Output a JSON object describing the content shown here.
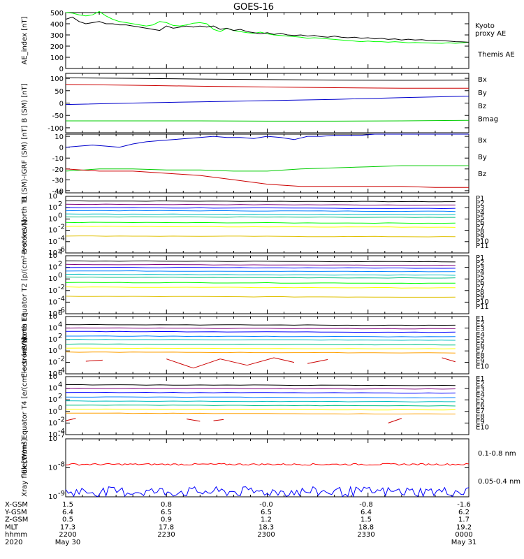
{
  "title": "GOES-16",
  "chart_data": [
    {
      "type": "line",
      "id": "ae",
      "ylabel": "AE_index [nT]",
      "ylim": [
        0,
        500
      ],
      "yticks": [
        "0",
        "100",
        "200",
        "300",
        "400",
        "500"
      ],
      "legend": [
        {
          "label": "Kyoto",
          "color": "#00ff00"
        },
        {
          "label": "proxy AE",
          "color": "#00ff00"
        },
        {
          "label": "Themis AE",
          "color": "#000000"
        }
      ],
      "series": [
        {
          "name": "Kyoto proxy AE",
          "color": "#00ff00",
          "x": [
            0,
            10,
            20,
            30,
            40,
            50,
            60,
            70,
            80,
            90,
            100,
            110,
            120,
            130,
            140,
            150,
            160,
            170,
            180,
            190,
            200,
            210,
            220,
            230,
            240,
            250,
            260,
            270,
            280,
            290,
            300,
            310,
            320,
            330,
            340,
            350,
            360,
            370,
            380,
            390,
            400,
            410,
            420,
            430,
            440,
            450,
            460,
            470,
            480,
            490,
            500,
            510,
            520,
            530,
            540,
            550,
            560,
            570,
            580,
            590,
            600
          ],
          "y": [
            500,
            495,
            480,
            470,
            480,
            510,
            470,
            440,
            420,
            410,
            400,
            390,
            380,
            390,
            420,
            410,
            385,
            380,
            390,
            405,
            410,
            400,
            350,
            330,
            360,
            340,
            330,
            320,
            315,
            325,
            310,
            300,
            295,
            290,
            285,
            280,
            270,
            275,
            270,
            265,
            260,
            255,
            250,
            245,
            240,
            245,
            240,
            240,
            235,
            240,
            235,
            230,
            232,
            230,
            228,
            226,
            225,
            230,
            225,
            230,
            235
          ]
        },
        {
          "name": "Themis AE",
          "color": "#000000",
          "x": [
            0,
            10,
            20,
            30,
            40,
            50,
            60,
            70,
            80,
            90,
            100,
            110,
            120,
            130,
            140,
            150,
            160,
            170,
            180,
            190,
            200,
            210,
            220,
            230,
            240,
            250,
            260,
            270,
            280,
            290,
            300,
            310,
            320,
            330,
            340,
            350,
            360,
            370,
            380,
            390,
            400,
            410,
            420,
            430,
            440,
            450,
            460,
            470,
            480,
            490,
            500,
            510,
            520,
            530,
            540,
            550,
            560,
            570,
            580,
            590,
            600
          ],
          "y": [
            440,
            460,
            420,
            400,
            410,
            420,
            400,
            400,
            390,
            390,
            380,
            370,
            360,
            350,
            340,
            380,
            360,
            370,
            380,
            370,
            380,
            370,
            380,
            350,
            360,
            340,
            350,
            330,
            320,
            310,
            320,
            305,
            315,
            300,
            295,
            300,
            290,
            295,
            285,
            280,
            290,
            280,
            275,
            280,
            270,
            275,
            265,
            270,
            260,
            265,
            255,
            262,
            255,
            258,
            250,
            252,
            248,
            245,
            240,
            238,
            235
          ]
        }
      ]
    },
    {
      "type": "line",
      "id": "bsm",
      "ylabel": "B (SM) [nT]",
      "ylim": [
        -120,
        120
      ],
      "yticks": [
        "-100",
        "-50",
        "0",
        "50",
        "100"
      ],
      "yticks_values": [
        -100,
        -50,
        0,
        50,
        100
      ],
      "legend": [
        {
          "label": "Bx",
          "color": "#0000cc"
        },
        {
          "label": "By",
          "color": "#00cc00"
        },
        {
          "label": "Bz",
          "color": "#cc0000"
        },
        {
          "label": "Bmag",
          "color": "#000000"
        }
      ],
      "series": [
        {
          "name": "Bmag",
          "color": "#000000",
          "x": [
            0,
            100,
            200,
            300,
            400,
            500,
            600
          ],
          "y": [
            102,
            100,
            97,
            95,
            93,
            92,
            93
          ]
        },
        {
          "name": "Bz",
          "color": "#cc0000",
          "x": [
            0,
            100,
            200,
            300,
            400,
            500,
            600
          ],
          "y": [
            75,
            72,
            68,
            65,
            62,
            60,
            60
          ]
        },
        {
          "name": "Bx",
          "color": "#0000cc",
          "x": [
            0,
            100,
            200,
            300,
            400,
            500,
            600
          ],
          "y": [
            -6,
            0,
            5,
            10,
            15,
            22,
            28
          ]
        },
        {
          "name": "By",
          "color": "#00cc00",
          "x": [
            0,
            100,
            200,
            300,
            400,
            500,
            600
          ],
          "y": [
            -72,
            -72,
            -72,
            -73,
            -73,
            -72,
            -70
          ]
        }
      ]
    },
    {
      "type": "line",
      "id": "bsmigrf",
      "ylabel": "B (SM)-IGRF (SM) [nT]",
      "ylim": [
        -42,
        12
      ],
      "yticks": [
        "-40",
        "-30",
        "-20",
        "-10",
        "0",
        "10"
      ],
      "yticks_values": [
        -40,
        -30,
        -20,
        -10,
        0,
        10
      ],
      "legend": [
        {
          "label": "Bx",
          "color": "#0000cc"
        },
        {
          "label": "By",
          "color": "#00cc00"
        },
        {
          "label": "Bz",
          "color": "#cc0000"
        }
      ],
      "series": [
        {
          "name": "Bx",
          "color": "#0000cc",
          "x": [
            0,
            20,
            40,
            60,
            80,
            100,
            120,
            140,
            160,
            180,
            200,
            220,
            240,
            260,
            280,
            300,
            320,
            340,
            360,
            380,
            400,
            420,
            440,
            460,
            480,
            500,
            520,
            540,
            560,
            580,
            600
          ],
          "y": [
            0,
            1,
            2,
            1,
            0,
            3,
            5,
            6,
            7,
            8,
            9,
            10,
            9,
            9,
            8,
            10,
            9,
            7,
            10,
            10,
            11,
            11,
            11,
            12,
            12,
            12,
            12,
            12,
            12,
            12,
            12
          ]
        },
        {
          "name": "By",
          "color": "#00cc00",
          "x": [
            0,
            50,
            100,
            150,
            200,
            250,
            300,
            350,
            400,
            450,
            500,
            550,
            600
          ],
          "y": [
            -22,
            -20,
            -20,
            -21,
            -21,
            -22,
            -22,
            -20,
            -19,
            -18,
            -17,
            -17,
            -17
          ]
        },
        {
          "name": "Bz",
          "color": "#cc0000",
          "x": [
            0,
            50,
            100,
            150,
            200,
            250,
            300,
            350,
            400,
            450,
            500,
            550,
            600
          ],
          "y": [
            -20,
            -22,
            -22,
            -24,
            -26,
            -30,
            -34,
            -36,
            -36,
            -36,
            -36,
            -37,
            -37
          ]
        }
      ]
    },
    {
      "type": "line",
      "id": "p_north",
      "ylabel": "Protons North T1",
      "yscale": "log",
      "ylim_exp": [
        -6,
        4
      ],
      "yticks_exp": [
        4,
        2,
        0,
        -2,
        -4,
        -6
      ],
      "legend": [
        {
          "label": "P1",
          "color": "#000000"
        },
        {
          "label": "P2",
          "color": "#7f007f"
        },
        {
          "label": "P3",
          "color": "#0000ff"
        },
        {
          "label": "P4",
          "color": "#0080ff"
        },
        {
          "label": "P5",
          "color": "#00bfbf"
        },
        {
          "label": "P6",
          "color": "#00c080"
        },
        {
          "label": "P7",
          "color": "#00ff00"
        },
        {
          "label": "P8",
          "color": "#ffff00"
        },
        {
          "label": "P9",
          "color": "#ffc000"
        },
        {
          "label": "P10",
          "color": "#ff0000"
        },
        {
          "label": "P11",
          "color": "#aa0000"
        }
      ],
      "levels": [
        3.2,
        2.6,
        2.0,
        1.5,
        0.9,
        0.4,
        -0.6,
        -1.3,
        -3.0
      ],
      "level_colors": [
        "#000000",
        "#7f007f",
        "#0000ff",
        "#0080ff",
        "#00bfbf",
        "#00c080",
        "#00ff00",
        "#ffff00",
        "#e0c000"
      ]
    },
    {
      "type": "line",
      "id": "p_eq",
      "ylabel": "Protons Equator T2 [p/(cm²-s-sr-keV)]",
      "yscale": "log",
      "ylim_exp": [
        -6,
        4
      ],
      "yticks_exp": [
        4,
        2,
        0,
        -2,
        -4,
        -6
      ],
      "legend": [
        {
          "label": "P1",
          "color": "#000000"
        },
        {
          "label": "P2",
          "color": "#7f007f"
        },
        {
          "label": "P3",
          "color": "#0000ff"
        },
        {
          "label": "P4",
          "color": "#0080ff"
        },
        {
          "label": "P5",
          "color": "#00bfbf"
        },
        {
          "label": "P6",
          "color": "#00c080"
        },
        {
          "label": "P7",
          "color": "#00ff00"
        },
        {
          "label": "P8",
          "color": "#ffff00"
        },
        {
          "label": "P9",
          "color": "#ffc000"
        },
        {
          "label": "P10",
          "color": "#ff0000"
        },
        {
          "label": "P11",
          "color": "#aa0000"
        }
      ],
      "levels": [
        3.1,
        2.5,
        2.0,
        1.4,
        0.8,
        0.3,
        -0.6,
        -1.4,
        -3.0
      ],
      "level_colors": [
        "#000000",
        "#7f007f",
        "#0000ff",
        "#0080ff",
        "#00bfbf",
        "#00c080",
        "#00ff00",
        "#ffff00",
        "#e0c000"
      ]
    },
    {
      "type": "line",
      "id": "e_north",
      "ylabel": "Electrons North T3",
      "yscale": "log",
      "ylim_exp": [
        -4,
        6
      ],
      "yticks_exp": [
        6,
        4,
        2,
        0,
        -2,
        -4
      ],
      "legend": [
        {
          "label": "E1",
          "color": "#000000"
        },
        {
          "label": "E2",
          "color": "#7f007f"
        },
        {
          "label": "E3",
          "color": "#0000ff"
        },
        {
          "label": "E4",
          "color": "#0080ff"
        },
        {
          "label": "E5",
          "color": "#00bfbf"
        },
        {
          "label": "E6",
          "color": "#00c080"
        },
        {
          "label": "E7",
          "color": "#ffff00"
        },
        {
          "label": "E8",
          "color": "#ffa000"
        },
        {
          "label": "E9",
          "color": "#ff0000"
        },
        {
          "label": "E10",
          "color": "#aa0000"
        }
      ],
      "levels": [
        4.6,
        4.0,
        3.4,
        2.6,
        2.0,
        1.2,
        0.5,
        -0.2
      ],
      "level_colors": [
        "#000000",
        "#7f007f",
        "#0000ff",
        "#0080ff",
        "#00bfbf",
        "#00c080",
        "#ffff00",
        "#ffa000"
      ]
    },
    {
      "type": "line",
      "id": "e_eq",
      "ylabel": "Electrons Equator T4 [e/(cm²-s-sr-keV)]",
      "yscale": "log",
      "ylim_exp": [
        -4,
        6
      ],
      "yticks_exp": [
        6,
        4,
        2,
        0,
        -2,
        -4
      ],
      "legend": [
        {
          "label": "E1",
          "color": "#000000"
        },
        {
          "label": "E2",
          "color": "#7f007f"
        },
        {
          "label": "E3",
          "color": "#0000ff"
        },
        {
          "label": "E4",
          "color": "#0080ff"
        },
        {
          "label": "E5",
          "color": "#00bfbf"
        },
        {
          "label": "E6",
          "color": "#00c080"
        },
        {
          "label": "E7",
          "color": "#ffff00"
        },
        {
          "label": "E8",
          "color": "#ffa000"
        },
        {
          "label": "E9",
          "color": "#ff0000"
        },
        {
          "label": "E10",
          "color": "#aa0000"
        }
      ],
      "levels": [
        4.6,
        4.0,
        3.3,
        2.5,
        1.8,
        1.1,
        0.4,
        -0.3
      ],
      "level_colors": [
        "#000000",
        "#7f007f",
        "#0000ff",
        "#0080ff",
        "#00bfbf",
        "#00c080",
        "#ffff00",
        "#ffa000"
      ]
    },
    {
      "type": "line",
      "id": "xray",
      "ylabel": "Xray flux [W/m²]",
      "yscale": "log",
      "ylim_exp": [
        -9,
        -7
      ],
      "yticks_exp": [
        -7,
        -8,
        -9
      ],
      "legend": [
        {
          "label": "0.1-0.8 nm",
          "color": "#ff0000"
        },
        {
          "label": "0.05-0.4 nm",
          "color": "#0000ff"
        }
      ],
      "series": [
        {
          "name": "0.1-0.8 nm",
          "color": "#ff0000",
          "mean_exp": -7.88,
          "jitter": 0.03
        },
        {
          "name": "0.05-0.4 nm",
          "color": "#0000ff",
          "mean_exp": -8.8,
          "jitter": 0.12
        }
      ]
    }
  ],
  "xaxis": {
    "rows": [
      {
        "label": "X-GSM",
        "values": [
          "1.5",
          "0.8",
          "-0.0",
          "-0.8",
          "-1.6"
        ]
      },
      {
        "label": "Y-GSM",
        "values": [
          "6.4",
          "6.5",
          "6.5",
          "6.4",
          "6.2"
        ]
      },
      {
        "label": "Z-GSM",
        "values": [
          "0.5",
          "0.9",
          "1.2",
          "1.5",
          "1.7"
        ]
      },
      {
        "label": "MLT",
        "values": [
          "17.3",
          "17.8",
          "18.3",
          "18.8",
          "19.2"
        ]
      },
      {
        "label": "hhmm",
        "values": [
          "2200",
          "2230",
          "2300",
          "2330",
          "0000"
        ]
      },
      {
        "label": "2020",
        "values": [
          "May 30",
          "",
          "",
          "",
          "May 31"
        ]
      }
    ]
  }
}
